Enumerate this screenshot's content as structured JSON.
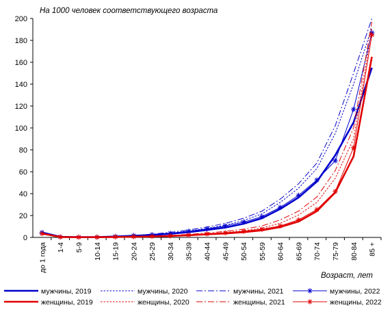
{
  "chart_data": {
    "type": "line",
    "title": "На 1000 человек соответствующего возраста",
    "xlabel": "Возраст, лет",
    "ylabel": "",
    "ylim": [
      0,
      200
    ],
    "yticks": [
      0,
      20,
      40,
      60,
      80,
      100,
      120,
      140,
      160,
      180,
      200
    ],
    "grid": false,
    "legend_position": "bottom",
    "categories": [
      "до 1 года",
      "1-4",
      "5-9",
      "10-14",
      "15-19",
      "20-24",
      "25-29",
      "30-34",
      "35-39",
      "40-44",
      "45-49",
      "50-54",
      "55-59",
      "60-64",
      "65-69",
      "70-74",
      "75-79",
      "80-84",
      "85 +"
    ],
    "series": [
      {
        "name": "мужчины, 2019",
        "color": "#0000cc",
        "style": "solid-thick",
        "values": [
          4.5,
          0.5,
          0.3,
          0.3,
          0.8,
          1.5,
          2.2,
          3.3,
          4.8,
          6.8,
          9.0,
          12.5,
          17.5,
          26.0,
          36.5,
          51.0,
          75.0,
          105.0,
          155.0
        ]
      },
      {
        "name": "мужчины, 2020",
        "color": "#0000cc",
        "style": "dotted",
        "values": [
          4.8,
          0.5,
          0.3,
          0.3,
          0.9,
          1.7,
          2.6,
          4.0,
          5.8,
          8.2,
          11.2,
          15.5,
          21.5,
          32.0,
          45.0,
          63.0,
          95.0,
          140.0,
          192.0
        ]
      },
      {
        "name": "мужчины, 2021",
        "color": "#0000cc",
        "style": "dashdot",
        "values": [
          4.8,
          0.5,
          0.3,
          0.3,
          1.0,
          1.9,
          3.0,
          4.6,
          6.8,
          9.5,
          12.8,
          17.5,
          24.0,
          35.0,
          49.0,
          68.0,
          102.0,
          150.0,
          200.0
        ]
      },
      {
        "name": "мужчины, 2022",
        "color": "#0000cc",
        "style": "thin-star",
        "values": [
          4.5,
          0.5,
          0.3,
          0.3,
          0.9,
          1.7,
          2.6,
          3.8,
          5.6,
          7.8,
          10.5,
          14.0,
          19.0,
          27.5,
          38.5,
          52.5,
          70.0,
          117.0,
          187.0
        ]
      },
      {
        "name": "женщины, 2019",
        "color": "#e00000",
        "style": "solid-thick",
        "values": [
          3.5,
          0.4,
          0.2,
          0.2,
          0.4,
          0.6,
          0.9,
          1.3,
          2.0,
          2.8,
          3.6,
          4.8,
          6.5,
          9.5,
          14.5,
          24.0,
          41.0,
          74.0,
          165.0
        ]
      },
      {
        "name": "женщины, 2020",
        "color": "#e00000",
        "style": "dotted",
        "values": [
          3.7,
          0.4,
          0.2,
          0.2,
          0.5,
          0.7,
          1.1,
          1.6,
          2.4,
          3.4,
          4.5,
          6.0,
          8.5,
          13.0,
          20.5,
          32.0,
          54.0,
          90.0,
          190.0
        ]
      },
      {
        "name": "женщины, 2021",
        "color": "#e00000",
        "style": "dashdot",
        "values": [
          3.7,
          0.4,
          0.2,
          0.2,
          0.5,
          0.8,
          1.2,
          1.8,
          2.8,
          4.0,
          5.5,
          7.5,
          10.5,
          16.0,
          24.0,
          37.0,
          61.0,
          100.0,
          197.0
        ]
      },
      {
        "name": "женщины, 2022",
        "color": "#e00000",
        "style": "thin-star",
        "values": [
          3.5,
          0.4,
          0.2,
          0.2,
          0.5,
          0.7,
          1.0,
          1.5,
          2.2,
          3.2,
          4.2,
          5.6,
          7.5,
          10.5,
          16.0,
          25.5,
          42.0,
          82.0,
          185.0
        ]
      }
    ]
  }
}
